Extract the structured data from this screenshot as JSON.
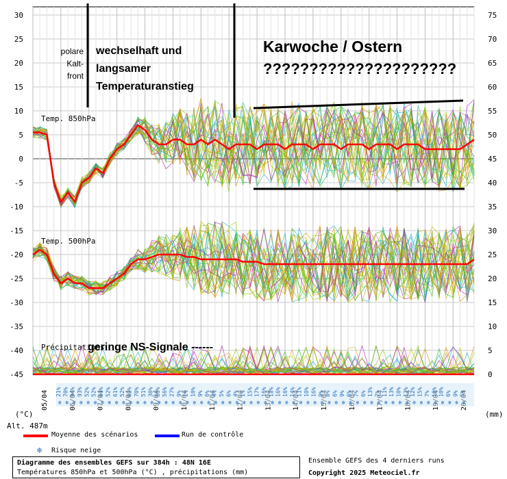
{
  "chart_data": {
    "type": "line",
    "title": "Diagramme des ensembles GEFS sur 384h : 48N 16E",
    "subtitle": "Températures 850hPa et 500hPa (°C) , précipitations (mm)",
    "left_axis": {
      "unit_label": "(°C)",
      "ticks": [
        30,
        25,
        20,
        15,
        10,
        5,
        0,
        -5,
        -10,
        -15,
        -20,
        -25,
        -30,
        -35,
        -40,
        -45
      ],
      "range": [
        -45,
        30
      ]
    },
    "right_axis": {
      "unit_label": "(mm)",
      "ticks": [
        75,
        70,
        65,
        60,
        55,
        50,
        45,
        40,
        35,
        30,
        25,
        20,
        15,
        10,
        5,
        0
      ]
    },
    "altitude_label": "Alt. 487m",
    "x_dates": [
      "05/04",
      "06/04",
      "07/04",
      "08/04",
      "09/04",
      "10/04",
      "11/04",
      "12/04",
      "13/04",
      "14/04",
      "15/04",
      "16/04",
      "17/04",
      "18/04",
      "19/04",
      "20/04"
    ],
    "panels": {
      "t850": {
        "label": "Temp. 850hPa"
      },
      "t500": {
        "label": "Temp. 500hPa"
      },
      "precip": {
        "label": "Précipitations"
      }
    },
    "series": [
      {
        "name": "Moyenne des scénarios",
        "color": "#ff0000"
      },
      {
        "name": "Run de contrôle",
        "color": "#0000ff"
      }
    ],
    "t850_mean": [
      5.5,
      5.5,
      5,
      -5,
      -9,
      -7,
      -9,
      -5,
      -4,
      -2,
      -3,
      0,
      2,
      3,
      5,
      7,
      6,
      4,
      3,
      3,
      4,
      4,
      3,
      3,
      4,
      3,
      4,
      3,
      2,
      3,
      3,
      3,
      2,
      3,
      3,
      3,
      2,
      3,
      3,
      3,
      2,
      3,
      3,
      3,
      2,
      3,
      3,
      3,
      2,
      3,
      3,
      3,
      2,
      3,
      3,
      3,
      2,
      2,
      2,
      2,
      2,
      2,
      3,
      4
    ],
    "t500_mean": [
      -20,
      -19,
      -20,
      -24,
      -26,
      -25,
      -26,
      -26,
      -27,
      -27,
      -27,
      -26,
      -25,
      -24,
      -22,
      -21,
      -21,
      -20.5,
      -20,
      -20,
      -20,
      -20,
      -20.5,
      -20.5,
      -21,
      -21,
      -21,
      -21,
      -21,
      -21,
      -21.5,
      -21.5,
      -21.5,
      -22,
      -22,
      -22,
      -22,
      -22,
      -22,
      -22,
      -22,
      -22,
      -22,
      -22,
      -22,
      -22,
      -22,
      -22,
      -22,
      -22,
      -22,
      -22,
      -22,
      -22,
      -22,
      -22,
      -22,
      -22,
      -22,
      -22,
      -22,
      -22,
      -22,
      -21
    ],
    "snow_risk_pct": [
      "21%",
      "70%",
      "94%",
      "93%",
      "52%",
      "52%",
      "61%",
      "52%",
      "61%",
      "52%",
      "62%",
      "70%",
      "51%",
      "38%",
      "56%",
      "56%",
      "27%",
      "9%",
      "1%",
      "10%",
      "9%",
      "6%",
      "4%",
      "5%",
      "6%",
      "4%",
      "1%",
      "15%",
      "17%",
      "16%",
      "18%",
      "16%",
      "16%",
      "14%",
      "11%",
      "10%",
      "16%",
      "9%",
      "8%",
      "6%",
      "9%",
      "6%",
      "7%",
      "6%",
      "13%",
      "7%",
      "11%",
      "13%",
      "10%",
      "12%",
      "12%",
      "15%",
      "7%",
      "16%",
      "10%",
      "6%",
      "9%",
      "5%"
    ],
    "legend_position": "bottom-left",
    "grid": true
  },
  "annotations": {
    "cold_front": [
      "polare",
      "Kalt-",
      "front"
    ],
    "phase1": [
      "wechselhaft und",
      "langsamer",
      "Temperaturanstieg"
    ],
    "phase2": "Karwoche / Ostern",
    "phase2_question": "?????????????????????",
    "precip_note": "geringe NS-Signale ------"
  },
  "legend": {
    "mean": "Moyenne des scénarios",
    "control": "Run de contrôle",
    "snow": "Risque neige"
  },
  "footer": {
    "title": "Diagramme des ensembles GEFS sur 384h : 48N 16E",
    "subtitle": "Températures 850hPa et 500hPa (°C) , précipitations (mm)",
    "ensemble_note": "Ensemble GEFS des 4 derniers runs",
    "copyright": "Copyright 2025 Meteociel.fr"
  },
  "colors": {
    "mean": "#ff0000",
    "control": "#0000ff",
    "members": [
      "#2ab52a",
      "#c8b400",
      "#1ab0c8",
      "#b020b0",
      "#8cc800",
      "#d09000"
    ],
    "snow": "#2a6fb8"
  }
}
